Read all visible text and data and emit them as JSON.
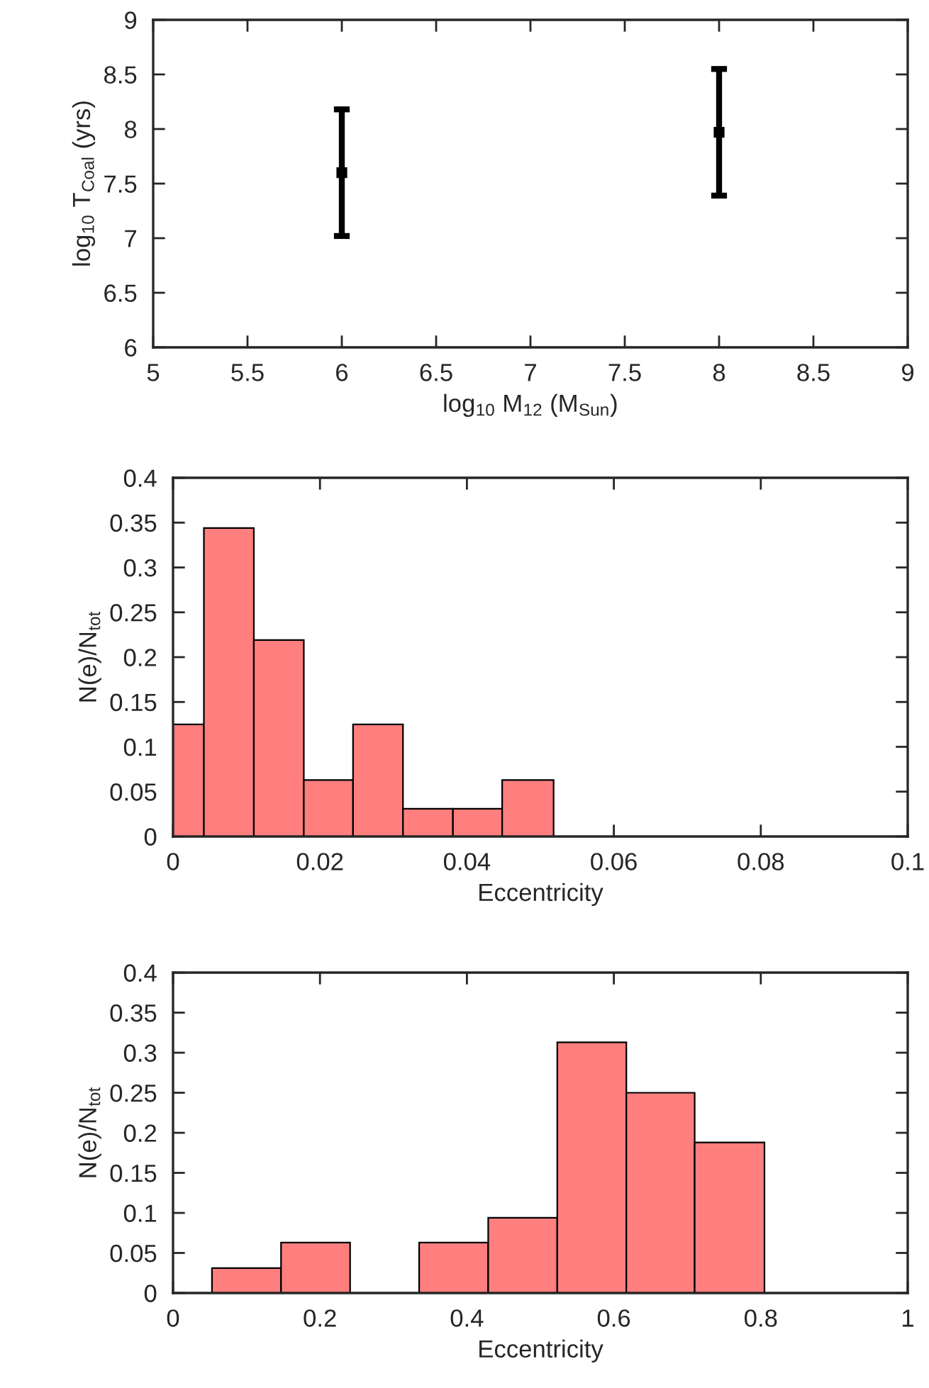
{
  "chart_data": [
    {
      "type": "scatter",
      "xlabel": "log$_{10}$ M$_{12}$ (M$_{Sun}$)",
      "ylabel": "log$_{10}$ T$_{Coal}$ (yrs)",
      "x": [
        6,
        8
      ],
      "series": [
        {
          "color": "#000000",
          "values": [
            7.6,
            7.97
          ],
          "errors": [
            [
              7.02,
              8.18
            ],
            [
              7.39,
              8.55
            ]
          ]
        }
      ],
      "marker": "square",
      "xlim": [
        5,
        9
      ],
      "xticks": [
        5,
        5.5,
        6,
        6.5,
        7,
        7.5,
        8,
        8.5,
        9
      ],
      "ylim": [
        6,
        9
      ],
      "yticks": [
        6,
        6.5,
        7,
        7.5,
        8,
        8.5,
        9
      ],
      "grid": false,
      "legend": false
    },
    {
      "type": "histogram",
      "xlabel": "Eccentricity",
      "ylabel": "N(e)/N$_{tot}$",
      "color": "#ff7f7f",
      "bins": [
        0,
        0.0042,
        0.011,
        0.0178,
        0.0245,
        0.0313,
        0.0381,
        0.0448,
        0.0518
      ],
      "values": [
        0.125,
        0.344,
        0.219,
        0.063,
        0.125,
        0.031,
        0.031,
        0.063
      ],
      "xlim": [
        0,
        0.1
      ],
      "xticks": [
        0,
        0.02,
        0.04,
        0.06,
        0.08,
        0.1
      ],
      "ylim": [
        0,
        0.4
      ],
      "yticks": [
        0,
        0.05,
        0.1,
        0.15,
        0.2,
        0.25,
        0.3,
        0.35,
        0.4
      ],
      "grid": false,
      "legend": false
    },
    {
      "type": "histogram",
      "xlabel": "Eccentricity",
      "ylabel": "N(e)/N$_{tot}$",
      "color": "#ff7f7f",
      "bins": [
        0.053,
        0.147,
        0.241,
        0.335,
        0.429,
        0.523,
        0.617,
        0.71,
        0.805
      ],
      "values": [
        0.031,
        0.063,
        0,
        0.063,
        0.094,
        0.313,
        0.25,
        0.188
      ],
      "xlim": [
        0,
        1
      ],
      "xticks": [
        0,
        0.2,
        0.4,
        0.6,
        0.8,
        1
      ],
      "ylim": [
        0,
        0.4
      ],
      "yticks": [
        0,
        0.05,
        0.1,
        0.15,
        0.2,
        0.25,
        0.3,
        0.35,
        0.4
      ],
      "grid": false,
      "legend": false
    }
  ]
}
